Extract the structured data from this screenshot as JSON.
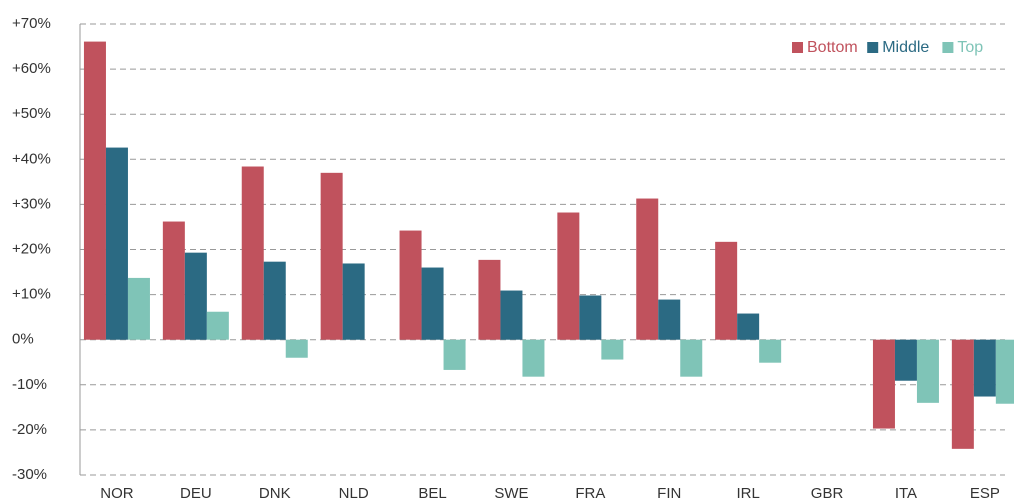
{
  "chart_data": {
    "type": "bar",
    "categories": [
      "NOR",
      "DEU",
      "DNK",
      "NLD",
      "BEL",
      "SWE",
      "FRA",
      "FIN",
      "IRL",
      "GBR",
      "ITA",
      "ESP"
    ],
    "series": [
      {
        "name": "Bottom",
        "color": "#c0525d",
        "values": [
          66.1,
          26.2,
          38.4,
          37.0,
          24.2,
          17.7,
          28.2,
          31.3,
          21.7,
          null,
          -19.7,
          -24.2
        ]
      },
      {
        "name": "Middle",
        "color": "#2b6a83",
        "values": [
          42.6,
          19.3,
          17.3,
          16.9,
          16.0,
          10.9,
          9.8,
          8.9,
          5.8,
          null,
          -9.1,
          -12.6
        ]
      },
      {
        "name": "Top",
        "color": "#7fc4b7",
        "values": [
          13.7,
          6.2,
          -4.0,
          null,
          -6.7,
          -8.2,
          -4.4,
          -8.2,
          -5.1,
          null,
          -14.0,
          -14.2
        ]
      }
    ],
    "ylim": [
      -30,
      70
    ],
    "yticks": [
      {
        "value": -30,
        "label": "-30%"
      },
      {
        "value": -20,
        "label": "-20%"
      },
      {
        "value": -10,
        "label": "-10%"
      },
      {
        "value": 0,
        "label": "0%"
      },
      {
        "value": 10,
        "label": "+10%"
      },
      {
        "value": 20,
        "label": "+20%"
      },
      {
        "value": 30,
        "label": "+30%"
      },
      {
        "value": 40,
        "label": "+40%"
      },
      {
        "value": 50,
        "label": "+50%"
      },
      {
        "value": 60,
        "label": "+60%"
      },
      {
        "value": 70,
        "label": "+70%"
      }
    ],
    "grid": true,
    "legend": "top-right"
  }
}
